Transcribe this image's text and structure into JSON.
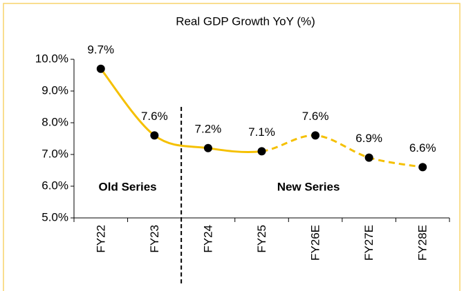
{
  "chart_data": {
    "type": "line",
    "title": "Real GDP Growth YoY (%)",
    "categories": [
      "FY22",
      "FY23",
      "FY24",
      "FY25",
      "FY26E",
      "FY27E",
      "FY28E"
    ],
    "series": [
      {
        "color": "#f5c000",
        "values": [
          9.7,
          7.6,
          7.2,
          7.1,
          7.6,
          6.9,
          6.6
        ],
        "value_labels": [
          "9.7%",
          "7.6%",
          "7.2%",
          "7.1%",
          "7.6%",
          "6.9%",
          "6.6%"
        ]
      }
    ],
    "ylim": [
      5,
      10
    ],
    "yticks": [
      {
        "value": 5,
        "label": "5.0%"
      },
      {
        "value": 6,
        "label": "6.0%"
      },
      {
        "value": 7,
        "label": "7.0%"
      },
      {
        "value": 8,
        "label": "8.0%"
      },
      {
        "value": 9,
        "label": "9.0%"
      },
      {
        "value": 10,
        "label": "10.0%"
      }
    ],
    "dashed_after": "FY25",
    "divider_after": "FY23",
    "annotations": [
      "Old Series",
      "New Series"
    ]
  }
}
